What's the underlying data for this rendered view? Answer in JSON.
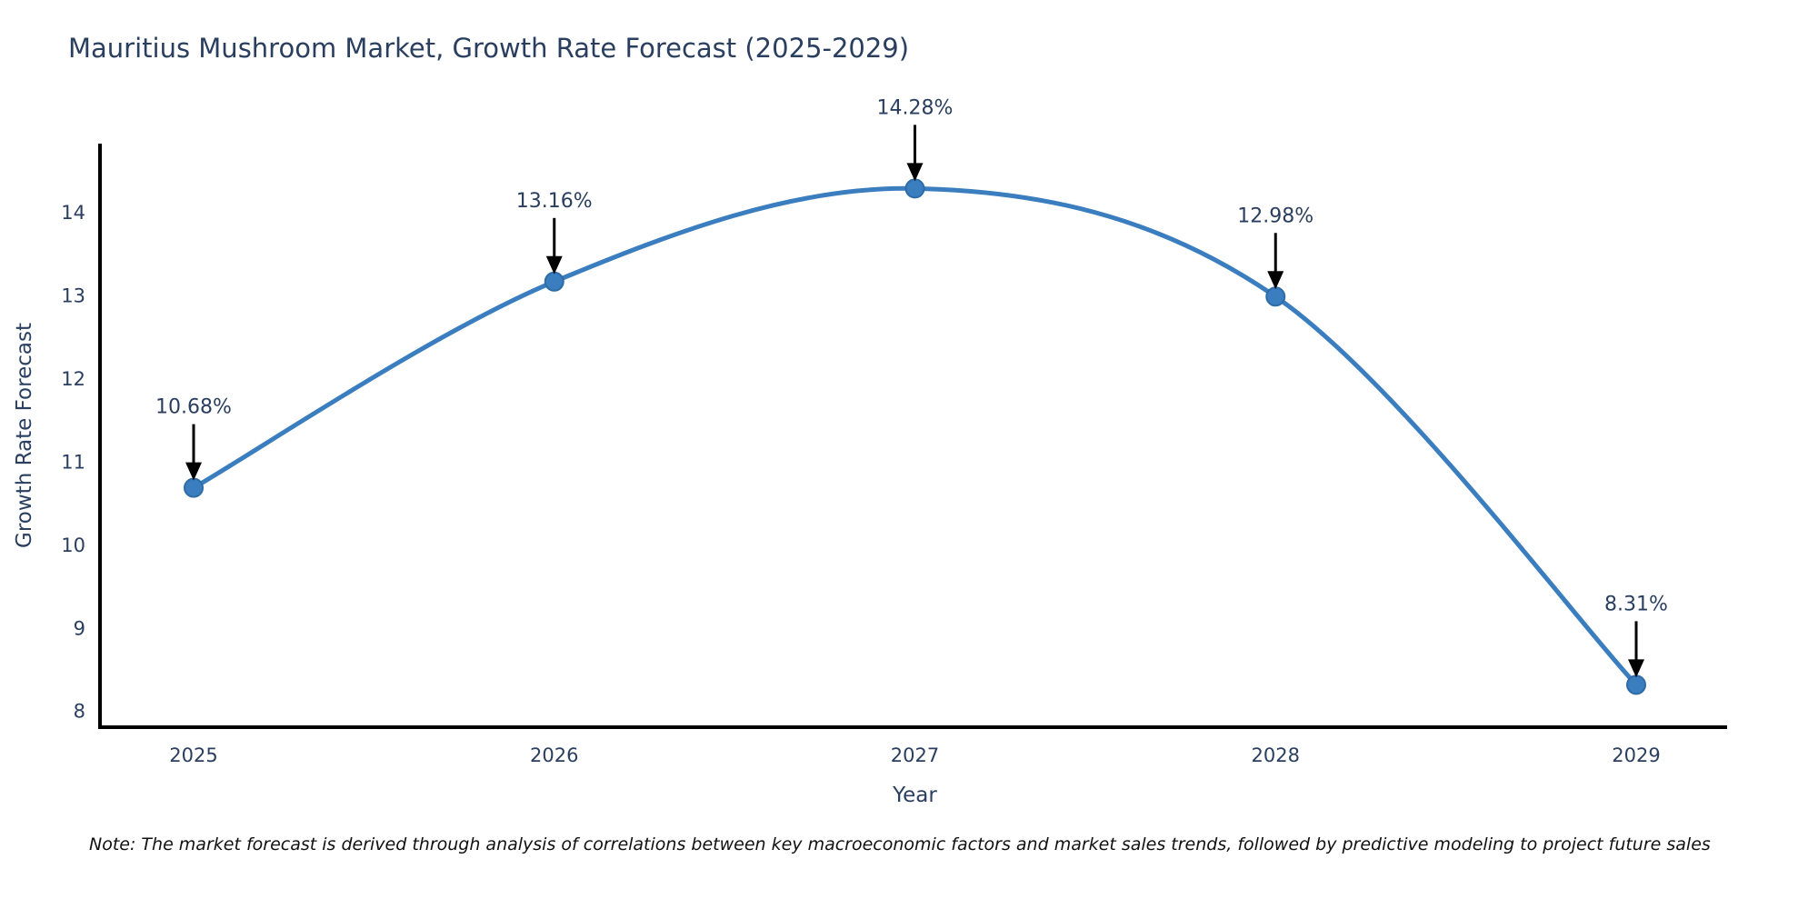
{
  "title": "Mauritius Mushroom Market, Growth Rate Forecast (2025-2029)",
  "note": "Note: The market forecast is derived through analysis of correlations between key macroeconomic factors and market sales trends, followed by predictive modeling to project future sales",
  "chart_data": {
    "type": "line",
    "line_shape": "spline",
    "markers": true,
    "grid": false,
    "title": "Mauritius Mushroom Market, Growth Rate Forecast (2025-2029)",
    "xlabel": "Year",
    "ylabel": "Growth Rate Forecast",
    "x": [
      2025,
      2026,
      2027,
      2028,
      2029
    ],
    "y": [
      10.68,
      13.16,
      14.28,
      12.98,
      8.31
    ],
    "point_labels": [
      "10.68%",
      "13.16%",
      "14.28%",
      "12.98%",
      "8.31%"
    ],
    "xticks": [
      "2025",
      "2026",
      "2027",
      "2028",
      "2029"
    ],
    "yticks": [
      8,
      9,
      10,
      11,
      12,
      13,
      14
    ],
    "ylim": [
      7.8,
      14.82
    ],
    "legend": "none",
    "colors": {
      "line": "#3a7ebf",
      "marker_fill": "#3a7ebf",
      "marker_edge": "#2e6ca8",
      "axis_line": "#000000",
      "tick_text": "#2a3f5f",
      "annotation_text": "#2a3f5f",
      "arrow": "#000000",
      "background": "#ffffff"
    }
  }
}
